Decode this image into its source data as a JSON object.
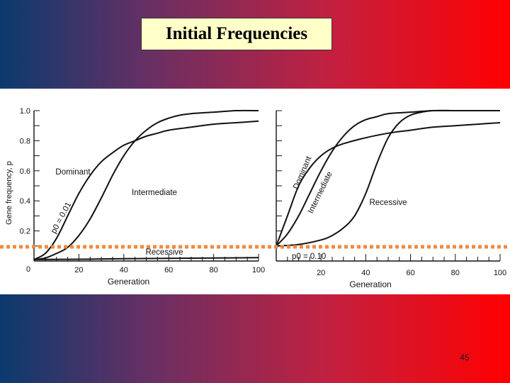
{
  "slide": {
    "title": "Initial Frequencies",
    "page_number": "45",
    "colors": {
      "gradient_left": "#0b3a6e",
      "gradient_right": "#ff0000",
      "title_bg": "#ffffc8"
    }
  },
  "chart_data": [
    {
      "type": "line",
      "ylabel": "Gene frequency, p",
      "xlabel": "Generation",
      "xlim": [
        0,
        100
      ],
      "ylim": [
        0,
        1.0
      ],
      "xticks": [
        "0",
        "20",
        "40",
        "60",
        "80",
        "100"
      ],
      "yticks": [
        "0.2",
        "0.4",
        "0.6",
        "0.8",
        "1.0"
      ],
      "annotation": "p0 = 0.01",
      "series": [
        {
          "name": "Dominant",
          "x": [
            0,
            5,
            10,
            15,
            20,
            25,
            30,
            35,
            40,
            45,
            50,
            55,
            60,
            70,
            80,
            90,
            100
          ],
          "y": [
            0.01,
            0.05,
            0.15,
            0.3,
            0.45,
            0.57,
            0.66,
            0.72,
            0.77,
            0.8,
            0.83,
            0.85,
            0.87,
            0.89,
            0.91,
            0.92,
            0.93
          ]
        },
        {
          "name": "Intermediate",
          "x": [
            0,
            5,
            10,
            15,
            20,
            25,
            30,
            35,
            40,
            45,
            50,
            55,
            60,
            65,
            70,
            80,
            90,
            100
          ],
          "y": [
            0.01,
            0.02,
            0.05,
            0.09,
            0.17,
            0.28,
            0.42,
            0.57,
            0.7,
            0.8,
            0.87,
            0.92,
            0.95,
            0.97,
            0.98,
            0.99,
            1.0,
            1.0
          ]
        },
        {
          "name": "Recessive",
          "x": [
            0,
            20,
            40,
            60,
            80,
            100
          ],
          "y": [
            0.01,
            0.012,
            0.015,
            0.018,
            0.02,
            0.022
          ]
        }
      ]
    },
    {
      "type": "line",
      "xlabel": "Generation",
      "xlim": [
        0,
        100
      ],
      "ylim": [
        0,
        1.0
      ],
      "xticks": [
        "20",
        "40",
        "60",
        "80",
        "100"
      ],
      "annotation": "p0 = 0.10",
      "series": [
        {
          "name": "Dominant",
          "x": [
            0,
            5,
            10,
            15,
            20,
            25,
            30,
            40,
            50,
            60,
            70,
            80,
            90,
            100
          ],
          "y": [
            0.1,
            0.3,
            0.5,
            0.62,
            0.7,
            0.75,
            0.78,
            0.82,
            0.85,
            0.87,
            0.89,
            0.9,
            0.91,
            0.92
          ]
        },
        {
          "name": "Intermediate",
          "x": [
            0,
            5,
            10,
            15,
            20,
            25,
            30,
            35,
            40,
            45,
            50,
            60,
            70,
            80,
            90,
            100
          ],
          "y": [
            0.1,
            0.18,
            0.3,
            0.45,
            0.6,
            0.73,
            0.83,
            0.9,
            0.94,
            0.96,
            0.98,
            0.99,
            1.0,
            1.0,
            1.0,
            1.0
          ]
        },
        {
          "name": "Recessive",
          "x": [
            0,
            10,
            20,
            25,
            30,
            35,
            40,
            45,
            50,
            55,
            60,
            65,
            70,
            80,
            90,
            100
          ],
          "y": [
            0.1,
            0.11,
            0.14,
            0.17,
            0.22,
            0.3,
            0.45,
            0.65,
            0.82,
            0.92,
            0.97,
            0.99,
            1.0,
            1.0,
            1.0,
            1.0
          ]
        }
      ]
    }
  ]
}
